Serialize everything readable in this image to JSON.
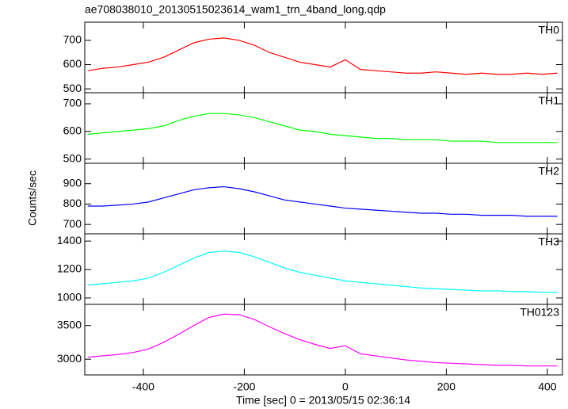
{
  "chart_data": {
    "type": "line",
    "title": "ae708038010_20130515023614_wam1_trn_4band_long.qdp",
    "xlabel": "Time [sec] 0 = 2013/05/15 02:36:14",
    "ylabel": "Counts/sec",
    "xlim": [
      -516,
      430
    ],
    "xticks": [
      -400,
      -200,
      0,
      200,
      400
    ],
    "x": [
      -510,
      -480,
      -450,
      -420,
      -390,
      -360,
      -330,
      -300,
      -270,
      -240,
      -210,
      -180,
      -150,
      -120,
      -90,
      -60,
      -30,
      0,
      30,
      60,
      90,
      120,
      150,
      180,
      210,
      240,
      270,
      300,
      330,
      360,
      390,
      420
    ],
    "series": [
      {
        "name": "TH0",
        "color": "#ff0000",
        "ylim": [
          484,
          775
        ],
        "yticks": [
          500,
          600,
          700
        ],
        "values": [
          575,
          585,
          590,
          600,
          610,
          630,
          660,
          690,
          705,
          710,
          700,
          680,
          650,
          630,
          610,
          600,
          590,
          620,
          580,
          575,
          570,
          565,
          565,
          570,
          565,
          560,
          565,
          560,
          560,
          565,
          560,
          565
        ]
      },
      {
        "name": "TH1",
        "color": "#00ff00",
        "ylim": [
          485,
          740
        ],
        "yticks": [
          500,
          600,
          700
        ],
        "values": [
          590,
          595,
          600,
          605,
          610,
          620,
          640,
          655,
          665,
          665,
          660,
          650,
          635,
          620,
          605,
          600,
          590,
          585,
          580,
          575,
          575,
          570,
          570,
          570,
          565,
          565,
          565,
          560,
          560,
          560,
          560,
          560
        ]
      },
      {
        "name": "TH2",
        "color": "#0000ff",
        "ylim": [
          654,
          1000
        ],
        "yticks": [
          700,
          800,
          900
        ],
        "values": [
          790,
          790,
          795,
          800,
          810,
          830,
          850,
          870,
          880,
          885,
          875,
          860,
          840,
          820,
          810,
          800,
          790,
          780,
          775,
          770,
          765,
          760,
          755,
          755,
          750,
          750,
          745,
          745,
          745,
          740,
          740,
          740
        ]
      },
      {
        "name": "TH3",
        "color": "#00ffff",
        "ylim": [
          955,
          1451
        ],
        "yticks": [
          1000,
          1200,
          1400
        ],
        "values": [
          1090,
          1100,
          1110,
          1120,
          1140,
          1180,
          1230,
          1280,
          1320,
          1330,
          1320,
          1290,
          1250,
          1210,
          1180,
          1160,
          1140,
          1120,
          1110,
          1100,
          1090,
          1080,
          1070,
          1065,
          1060,
          1055,
          1050,
          1050,
          1045,
          1045,
          1040,
          1040
        ]
      },
      {
        "name": "TH0123",
        "color": "#ff00ff",
        "ylim": [
          2767,
          3814
        ],
        "yticks": [
          3000,
          3500
        ],
        "values": [
          3030,
          3050,
          3070,
          3100,
          3150,
          3250,
          3370,
          3500,
          3620,
          3670,
          3660,
          3590,
          3480,
          3380,
          3290,
          3220,
          3160,
          3200,
          3080,
          3050,
          3020,
          2990,
          2970,
          2950,
          2940,
          2930,
          2920,
          2910,
          2910,
          2900,
          2900,
          2900
        ]
      }
    ]
  }
}
